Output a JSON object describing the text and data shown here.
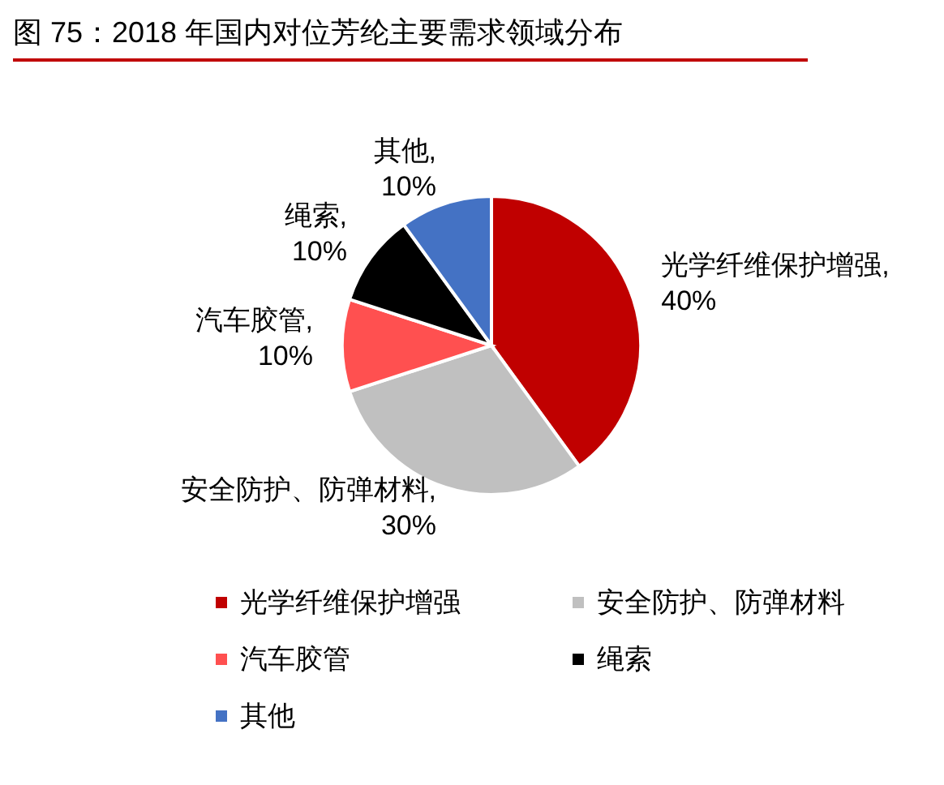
{
  "chart_data": {
    "type": "pie",
    "title": "图 75：2018 年国内对位芳纶主要需求领域分布",
    "categories": [
      "光学纤维保护增强",
      "安全防护、防弹材料",
      "汽车胶管",
      "绳索",
      "其他"
    ],
    "values": [
      40,
      30,
      10,
      10,
      10
    ],
    "value_labels": [
      "光学纤维保护增强, 40%",
      "安全防护、防弹材料, 30%",
      "汽车胶管, 10%",
      "绳索, 10%",
      "其他, 10%"
    ],
    "colors": [
      "#c00000",
      "#c0c0c0",
      "#ff5050",
      "#000000",
      "#4472c4"
    ],
    "legend": "bottom"
  }
}
